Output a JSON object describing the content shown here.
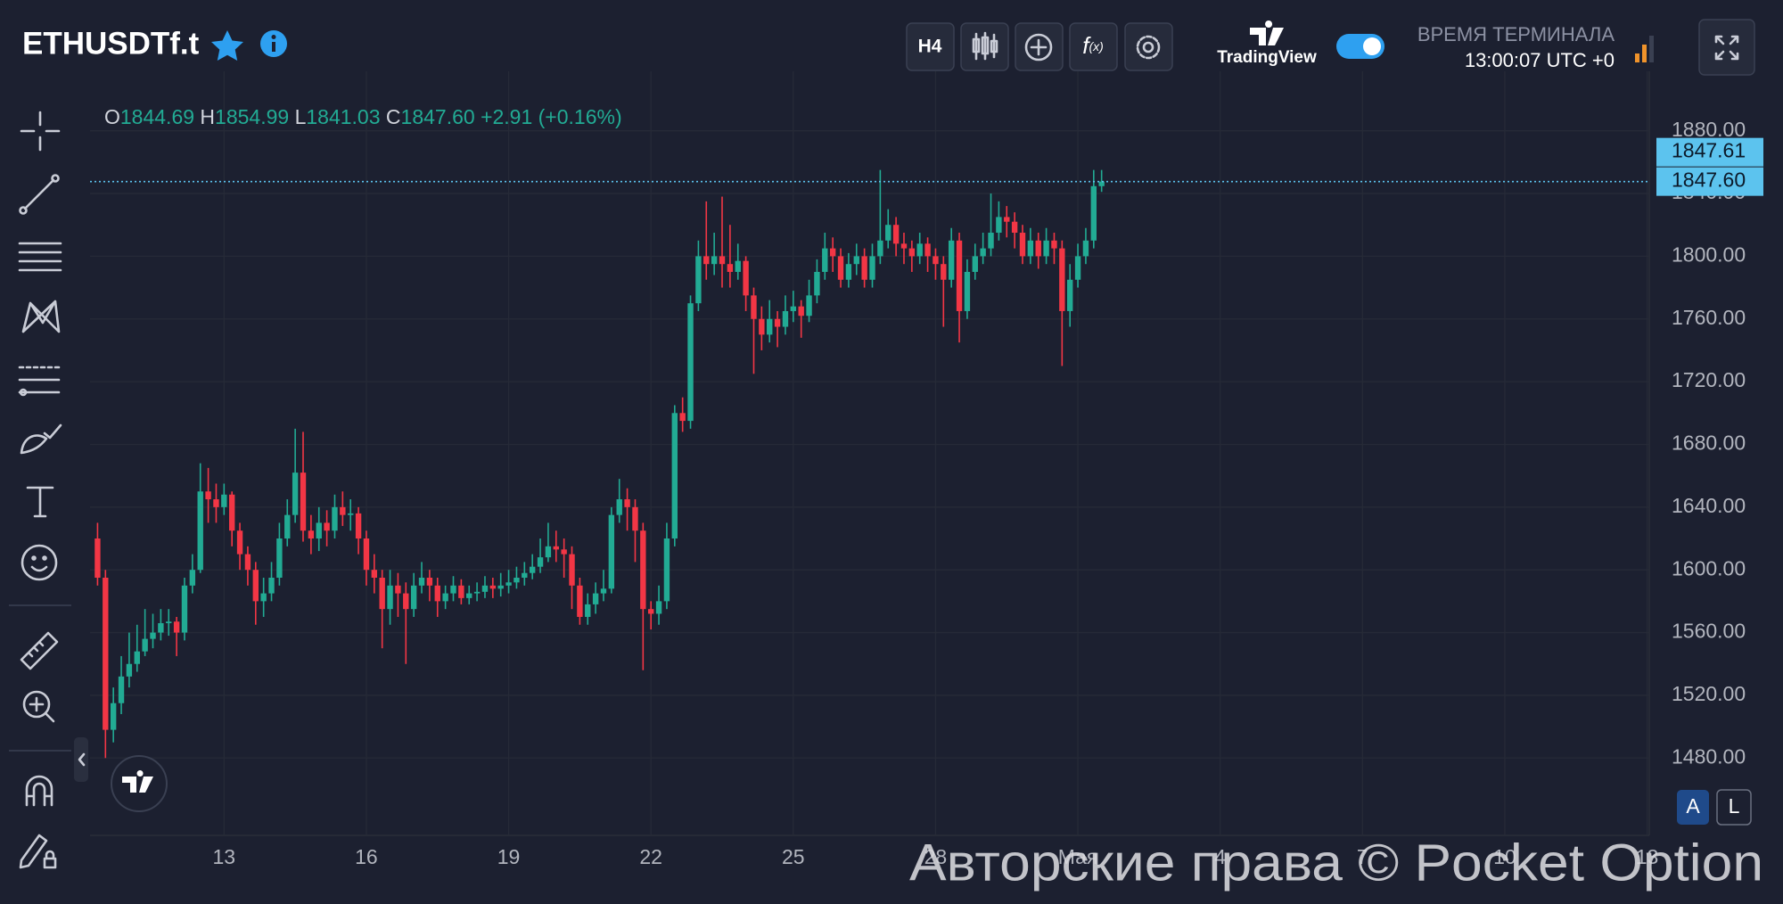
{
  "header": {
    "symbol": "ETHUSDTf.t",
    "timeframe": "H4",
    "brand": "TradingView",
    "terminal_time_label": "ВРЕМЯ ТЕРМИНАЛА",
    "terminal_time": "13:00:07 UTC +0"
  },
  "ohlc_legend": {
    "open_label": "O",
    "open": "1844.69",
    "high_label": "H",
    "high": "1854.99",
    "low_label": "L",
    "low": "1841.03",
    "close_label": "C",
    "close": "1847.60",
    "change": "+2.91 (+0.16%)"
  },
  "scale_buttons": [
    "A",
    "L"
  ],
  "watermark": "Авторские права © Pocket Option",
  "chart_data": {
    "type": "candlestick",
    "up_color": "#22ab94",
    "down_color": "#f23645",
    "grid": true,
    "ylim": [
      1430.7,
      1905.4
    ],
    "yticks": [
      {
        "value": 1480,
        "label": "1480.00"
      },
      {
        "value": 1520,
        "label": "1520.00"
      },
      {
        "value": 1560,
        "label": "1560.00"
      },
      {
        "value": 1600,
        "label": "1600.00"
      },
      {
        "value": 1640,
        "label": "1640.00"
      },
      {
        "value": 1680,
        "label": "1680.00"
      },
      {
        "value": 1720,
        "label": "1720.00"
      },
      {
        "value": 1760,
        "label": "1760.00"
      },
      {
        "value": 1800,
        "label": "1800.00"
      },
      {
        "value": 1840,
        "label": "1840.00"
      },
      {
        "value": 1880,
        "label": "1880.00"
      }
    ],
    "price_tags": [
      {
        "value": 1847.61,
        "label": "1847.61"
      },
      {
        "value": 1847.6,
        "label": "1847.60"
      }
    ],
    "categories": [
      null,
      null,
      null,
      null,
      null,
      null,
      null,
      null,
      null,
      null,
      null,
      null,
      null,
      null,
      null,
      null,
      "13",
      null,
      null,
      null,
      null,
      null,
      null,
      null,
      null,
      null,
      null,
      null,
      null,
      null,
      null,
      null,
      null,
      null,
      "16",
      null,
      null,
      null,
      null,
      null,
      null,
      null,
      null,
      null,
      null,
      null,
      null,
      null,
      null,
      null,
      null,
      null,
      "19",
      null,
      null,
      null,
      null,
      null,
      null,
      null,
      null,
      null,
      null,
      null,
      null,
      null,
      null,
      null,
      null,
      null,
      "22",
      null,
      null,
      null,
      null,
      null,
      null,
      null,
      null,
      null,
      null,
      null,
      null,
      null,
      null,
      null,
      null,
      null,
      "25",
      null,
      null,
      null,
      null,
      null,
      null,
      null,
      null,
      null,
      null,
      null,
      null,
      null,
      null,
      null,
      null,
      null,
      "28",
      null,
      null,
      null,
      null,
      null,
      null,
      null,
      null,
      null,
      null,
      null,
      null,
      null,
      null,
      null,
      null,
      null,
      "Мая",
      null,
      null,
      null,
      null,
      null,
      null,
      null,
      null,
      null,
      null,
      null,
      null,
      null,
      null,
      null,
      null,
      null,
      "4",
      null,
      null,
      null,
      null,
      null,
      null,
      null,
      null,
      null,
      null,
      null,
      null,
      null,
      null,
      null,
      null,
      null,
      "7",
      null,
      null,
      null,
      null,
      null,
      null,
      null,
      null,
      null,
      null,
      null,
      null,
      null,
      null,
      null,
      null,
      null,
      "10",
      null,
      null,
      null,
      null,
      null,
      null,
      null,
      null,
      null,
      null,
      null,
      null,
      null,
      null,
      null,
      null,
      null,
      "13"
    ],
    "open": [
      1620,
      1595,
      1498,
      1515,
      1532,
      1540,
      1548,
      1556,
      1560,
      1566,
      1567,
      1560,
      1590,
      1600,
      1650,
      1645,
      1640,
      1648,
      1625,
      1610,
      1600,
      1580,
      1585,
      1595,
      1620,
      1635,
      1662,
      1625,
      1620,
      1630,
      1625,
      1640,
      1635,
      1636,
      1620,
      1600,
      1595,
      1575,
      1590,
      1585,
      1575,
      1590,
      1595,
      1590,
      1580,
      1585,
      1590,
      1582,
      1585,
      1586,
      1590,
      1588,
      1590,
      1592,
      1595,
      1598,
      1602,
      1608,
      1615,
      1613,
      1610,
      1590,
      1570,
      1578,
      1585,
      1588,
      1635,
      1645,
      1640,
      1625,
      1575,
      1572,
      1580,
      1620,
      1700,
      1695,
      1770,
      1800,
      1795,
      1800,
      1795,
      1790,
      1797,
      1775,
      1760,
      1750,
      1760,
      1755,
      1765,
      1768,
      1762,
      1775,
      1790,
      1805,
      1800,
      1785,
      1795,
      1800,
      1785,
      1800,
      1810,
      1820,
      1808,
      1805,
      1800,
      1808,
      1800,
      1795,
      1785,
      1810,
      1765,
      1790,
      1800,
      1805,
      1815,
      1825,
      1822,
      1815,
      1800,
      1810,
      1800,
      1810,
      1805,
      1765,
      1785,
      1800,
      1810,
      1844.69,
      null,
      null,
      null,
      null,
      null,
      null,
      null,
      null,
      null,
      null,
      null,
      null,
      null,
      null,
      null,
      null,
      null,
      null,
      null,
      null,
      null,
      null,
      null,
      null,
      null,
      null,
      null,
      null,
      null,
      null,
      null,
      null,
      null,
      null,
      null,
      null,
      null,
      null,
      null,
      null,
      null,
      null,
      null,
      null,
      null,
      null,
      null,
      null,
      null,
      null,
      null,
      null,
      null,
      null,
      null,
      null,
      null,
      null,
      null,
      null,
      null,
      null,
      null,
      null,
      null,
      null,
      null,
      null,
      null
    ],
    "high": [
      1630,
      1600,
      1525,
      1545,
      1560,
      1565,
      1575,
      1572,
      1575,
      1575,
      1570,
      1595,
      1610,
      1668,
      1665,
      1655,
      1655,
      1650,
      1630,
      1615,
      1605,
      1595,
      1605,
      1630,
      1645,
      1690,
      1688,
      1635,
      1640,
      1638,
      1648,
      1650,
      1645,
      1640,
      1625,
      1610,
      1600,
      1600,
      1598,
      1592,
      1598,
      1605,
      1600,
      1595,
      1590,
      1596,
      1594,
      1590,
      1592,
      1596,
      1595,
      1598,
      1600,
      1602,
      1605,
      1610,
      1620,
      1630,
      1625,
      1620,
      1615,
      1595,
      1585,
      1592,
      1600,
      1640,
      1658,
      1652,
      1645,
      1630,
      1580,
      1590,
      1630,
      1705,
      1710,
      1775,
      1810,
      1835,
      1815,
      1838,
      1820,
      1808,
      1800,
      1780,
      1768,
      1772,
      1765,
      1775,
      1778,
      1772,
      1785,
      1798,
      1815,
      1812,
      1805,
      1802,
      1808,
      1805,
      1808,
      1855,
      1830,
      1825,
      1815,
      1810,
      1815,
      1812,
      1805,
      1800,
      1818,
      1815,
      1798,
      1808,
      1815,
      1840,
      1835,
      1832,
      1828,
      1820,
      1818,
      1815,
      1818,
      1815,
      1810,
      1795,
      1808,
      1818,
      1855,
      1854.99,
      null,
      null,
      null,
      null,
      null,
      null,
      null,
      null,
      null,
      null,
      null,
      null,
      null,
      null,
      null,
      null,
      null,
      null,
      null,
      null,
      null,
      null,
      null,
      null,
      null,
      null,
      null,
      null,
      null,
      null,
      null,
      null,
      null,
      null,
      null,
      null,
      null,
      null,
      null,
      null,
      null,
      null,
      null,
      null,
      null,
      null,
      null,
      null,
      null,
      null,
      null,
      null,
      null,
      null,
      null,
      null,
      null,
      null,
      null,
      null,
      null,
      null,
      null,
      null,
      null,
      null,
      null,
      null,
      null
    ],
    "low": [
      1590,
      1480,
      1490,
      1508,
      1525,
      1535,
      1545,
      1550,
      1555,
      1558,
      1545,
      1555,
      1585,
      1598,
      1630,
      1630,
      1635,
      1615,
      1600,
      1590,
      1565,
      1570,
      1580,
      1590,
      1615,
      1630,
      1618,
      1610,
      1612,
      1615,
      1620,
      1628,
      1625,
      1610,
      1590,
      1585,
      1550,
      1565,
      1570,
      1540,
      1570,
      1585,
      1580,
      1570,
      1575,
      1580,
      1578,
      1578,
      1580,
      1582,
      1582,
      1583,
      1585,
      1588,
      1590,
      1594,
      1598,
      1605,
      1605,
      1595,
      1575,
      1565,
      1565,
      1572,
      1580,
      1585,
      1630,
      1625,
      1605,
      1536,
      1562,
      1565,
      1575,
      1615,
      1688,
      1690,
      1765,
      1785,
      1788,
      1780,
      1780,
      1785,
      1765,
      1725,
      1740,
      1745,
      1742,
      1750,
      1758,
      1748,
      1758,
      1770,
      1785,
      1790,
      1780,
      1780,
      1788,
      1780,
      1780,
      1795,
      1805,
      1800,
      1795,
      1790,
      1795,
      1790,
      1785,
      1755,
      1780,
      1745,
      1760,
      1785,
      1795,
      1800,
      1810,
      1812,
      1805,
      1795,
      1795,
      1792,
      1795,
      1795,
      1730,
      1755,
      1780,
      1795,
      1805,
      1841.03,
      null,
      null,
      null,
      null,
      null,
      null,
      null,
      null,
      null,
      null,
      null,
      null,
      null,
      null,
      null,
      null,
      null,
      null,
      null,
      null,
      null,
      null,
      null,
      null,
      null,
      null,
      null,
      null,
      null,
      null,
      null,
      null,
      null,
      null,
      null,
      null,
      null,
      null,
      null,
      null,
      null,
      null,
      null,
      null,
      null,
      null,
      null,
      null,
      null,
      null,
      null,
      null,
      null,
      null,
      null,
      null,
      null,
      null,
      null,
      null,
      null,
      null,
      null,
      null,
      null,
      null,
      null,
      null,
      null
    ],
    "close": [
      1595,
      1498,
      1515,
      1532,
      1540,
      1548,
      1556,
      1560,
      1566,
      1567,
      1560,
      1590,
      1600,
      1650,
      1645,
      1640,
      1648,
      1625,
      1610,
      1600,
      1580,
      1585,
      1595,
      1620,
      1635,
      1662,
      1625,
      1620,
      1630,
      1625,
      1640,
      1635,
      1636,
      1620,
      1600,
      1595,
      1575,
      1590,
      1585,
      1575,
      1590,
      1595,
      1590,
      1580,
      1585,
      1590,
      1582,
      1585,
      1586,
      1590,
      1588,
      1590,
      1592,
      1595,
      1598,
      1602,
      1608,
      1615,
      1613,
      1610,
      1590,
      1570,
      1578,
      1585,
      1588,
      1635,
      1645,
      1640,
      1625,
      1575,
      1572,
      1580,
      1620,
      1700,
      1695,
      1770,
      1800,
      1795,
      1800,
      1795,
      1790,
      1797,
      1775,
      1760,
      1750,
      1760,
      1755,
      1765,
      1768,
      1762,
      1775,
      1790,
      1805,
      1800,
      1785,
      1795,
      1800,
      1785,
      1800,
      1810,
      1820,
      1808,
      1805,
      1800,
      1808,
      1800,
      1795,
      1785,
      1810,
      1765,
      1790,
      1800,
      1805,
      1815,
      1825,
      1822,
      1815,
      1800,
      1810,
      1800,
      1810,
      1805,
      1765,
      1785,
      1800,
      1810,
      1844.69,
      1847.6,
      null,
      null,
      null,
      null,
      null,
      null,
      null,
      null,
      null,
      null,
      null,
      null,
      null,
      null,
      null,
      null,
      null,
      null,
      null,
      null,
      null,
      null,
      null,
      null,
      null,
      null,
      null,
      null,
      null,
      null,
      null,
      null,
      null,
      null,
      null,
      null,
      null,
      null,
      null,
      null,
      null,
      null,
      null,
      null,
      null,
      null,
      null,
      null,
      null,
      null,
      null,
      null,
      null,
      null,
      null,
      null,
      null,
      null,
      null,
      null,
      null,
      null,
      null,
      null,
      null,
      null,
      null,
      null,
      null
    ]
  }
}
